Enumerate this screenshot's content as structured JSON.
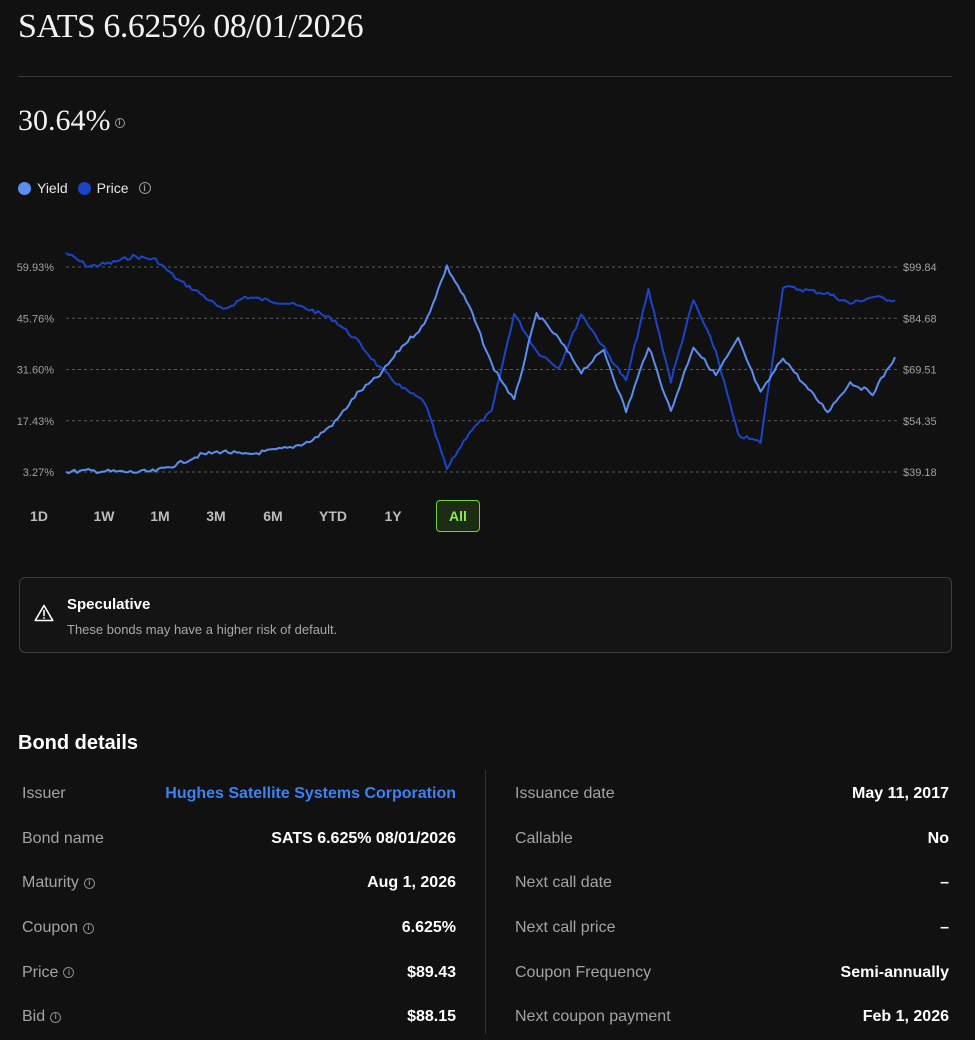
{
  "title": "SATS 6.625% 08/01/2026",
  "current_yield": "30.64%",
  "legend": {
    "yield_label": "Yield",
    "price_label": "Price"
  },
  "colors": {
    "yield": "#5b8ef0",
    "price": "#1b45c6",
    "active_range": "#6fd43a",
    "link": "#3b82f6"
  },
  "chart_data": {
    "type": "line",
    "y_left_ticks": [
      "59.93%",
      "45.76%",
      "31.60%",
      "17.43%",
      "3.27%"
    ],
    "y_right_ticks": [
      "$99.84",
      "$84.68",
      "$69.51",
      "$54.35",
      "$39.18"
    ],
    "yield_range": [
      3.27,
      59.93
    ],
    "price_range": [
      39.18,
      99.84
    ],
    "grid": "dashed horizontal",
    "series": [
      {
        "name": "Yield",
        "values": [
          3.3,
          3.6,
          3.4,
          3.2,
          3.5,
          5.5,
          8,
          9,
          8,
          9,
          10,
          12,
          17,
          25,
          30,
          38,
          44,
          60,
          49,
          33,
          23,
          47,
          40,
          31,
          37,
          20,
          38,
          20,
          38,
          30,
          40,
          25,
          35,
          27,
          20,
          28,
          25,
          35
        ]
      },
      {
        "name": "Price",
        "values": [
          104,
          100,
          101,
          103,
          102,
          96,
          92,
          87,
          91,
          90,
          89,
          87,
          84,
          78,
          70,
          64,
          60,
          40,
          51,
          57,
          86,
          75,
          70,
          86,
          76,
          66,
          93,
          66,
          90,
          75,
          50,
          48,
          94,
          93,
          92,
          89,
          91,
          90
        ]
      }
    ]
  },
  "time_ranges": [
    "1D",
    "1W",
    "1M",
    "3M",
    "6M",
    "YTD",
    "1Y",
    "All"
  ],
  "active_range": "All",
  "warning": {
    "title": "Speculative",
    "text": "These bonds may have a higher risk of default."
  },
  "details": {
    "title": "Bond details",
    "left": [
      {
        "label": "Issuer",
        "value": "Hughes Satellite Systems Corporation",
        "link": true,
        "info": false
      },
      {
        "label": "Bond name",
        "value": "SATS 6.625% 08/01/2026",
        "link": false,
        "info": false
      },
      {
        "label": "Maturity",
        "value": "Aug 1, 2026",
        "link": false,
        "info": true
      },
      {
        "label": "Coupon",
        "value": "6.625%",
        "link": false,
        "info": true
      },
      {
        "label": "Price",
        "value": "$89.43",
        "link": false,
        "info": true
      },
      {
        "label": "Bid",
        "value": "$88.15",
        "link": false,
        "info": true
      }
    ],
    "right": [
      {
        "label": "Issuance date",
        "value": "May 11, 2017",
        "link": false,
        "info": false
      },
      {
        "label": "Callable",
        "value": "No",
        "link": false,
        "info": false
      },
      {
        "label": "Next call date",
        "value": "–",
        "link": false,
        "info": false
      },
      {
        "label": "Next call price",
        "value": "–",
        "link": false,
        "info": false
      },
      {
        "label": "Coupon Frequency",
        "value": "Semi-annually",
        "link": false,
        "info": false
      },
      {
        "label": "Next coupon payment",
        "value": "Feb 1, 2026",
        "link": false,
        "info": false
      }
    ]
  }
}
